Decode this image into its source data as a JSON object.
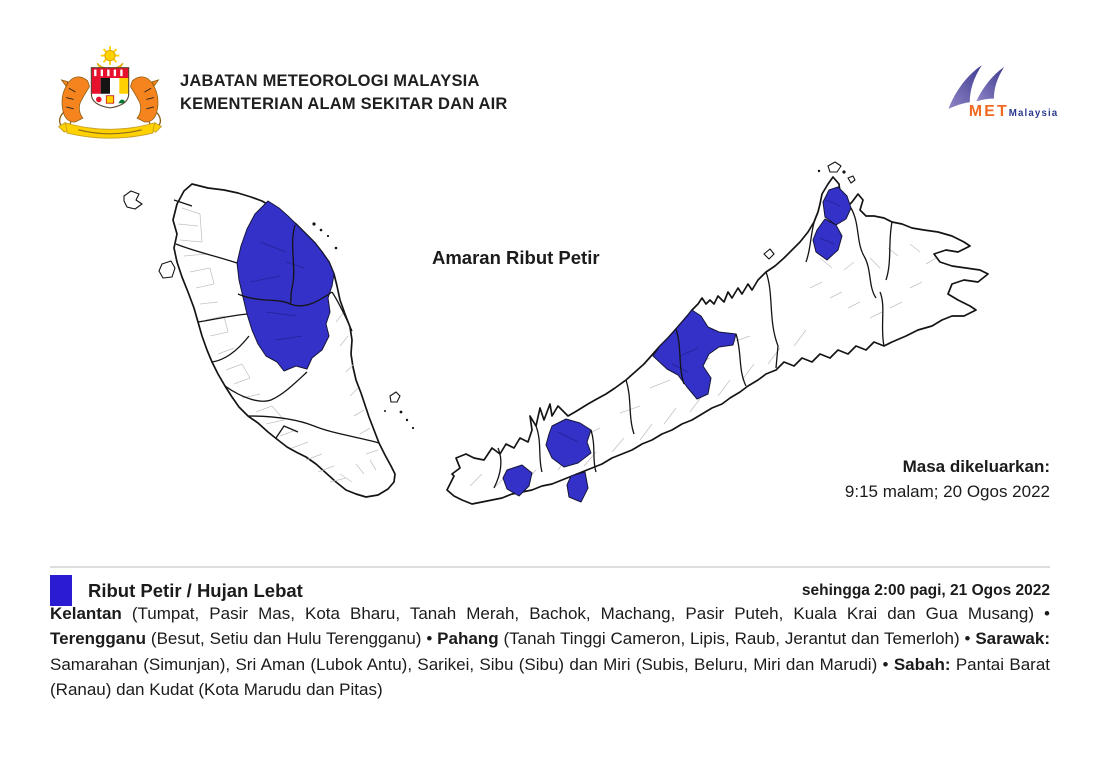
{
  "header": {
    "agency_line1": "JABATAN METEOROLOGI MALAYSIA",
    "agency_line2": "KEMENTERIAN ALAM SEKITAR DAN AIR",
    "crest_icon": "malaysia-coat-of-arms-icon",
    "met_logo_icon": "met-swoosh-icon",
    "met_logo_met": "MET",
    "met_logo_malaysia": "Malaysia"
  },
  "map_area": {
    "title": "Amaran Ribut Petir",
    "issued_label": "Masa dikeluarkan:",
    "issued_value": "9:15 malam; 20 Ogos 2022",
    "maps": [
      {
        "name": "Semenanjung Malaysia",
        "highlighted": [
          "Kelantan",
          "Terengganu (Besut, Setiu, Hulu Terengganu)",
          "Pahang utara (Tanah Tinggi Cameron, Lipis, Raub, Jerantut, Temerloh)"
        ]
      },
      {
        "name": "Sarawak dan Sabah",
        "highlighted": [
          "Samarahan (Simunjan)",
          "Sri Aman (Lubok Antu)",
          "Sarikei",
          "Sibu (Sibu)",
          "Miri (Subis, Beluru, Miri, Marudi)",
          "Pantai Barat (Ranau)",
          "Kudat (Kota Marudu, Pitas)"
        ]
      }
    ]
  },
  "legend": {
    "label": "Ribut Petir / Hujan Lebat",
    "valid_until": "sehingga 2:00 pagi, 21 Ogos 2022"
  },
  "warning_text": {
    "segments": [
      {
        "text": "Kelantan",
        "bold": true
      },
      {
        "text": " (Tumpat, Pasir Mas, Kota Bharu, Tanah Merah, Bachok, Machang, Pasir Puteh, Kuala Krai dan Gua Musang) • ",
        "bold": false
      },
      {
        "text": "Terengganu",
        "bold": true
      },
      {
        "text": " (Besut, Setiu dan Hulu Terengganu) • ",
        "bold": false
      },
      {
        "text": "Pahang",
        "bold": true
      },
      {
        "text": " (Tanah Tinggi Cameron, Lipis, Raub, Jerantut dan Temerloh) • ",
        "bold": false
      },
      {
        "text": "Sarawak:",
        "bold": true
      },
      {
        "text": " Samarahan (Simunjan), Sri Aman (Lubok Antu), Sarikei, Sibu (Sibu) dan Miri (Subis, Beluru, Miri dan Marudi) • ",
        "bold": false
      },
      {
        "text": "Sabah:",
        "bold": true
      },
      {
        "text": " Pantai Barat (Ranau) dan Kudat (Kota Marudu dan Pitas)",
        "bold": false
      }
    ]
  },
  "colors": {
    "warning_blue": "#2B1CD3",
    "map_highlight_blue": "#3431C8",
    "coast_outline": "#141414",
    "district_line": "#c2c2c2",
    "divider": "#dedede",
    "met_orange": "#F26A21",
    "met_navy": "#2B3A8F",
    "met_purple": "#4D4498",
    "crest_yellow": "#FFD100",
    "crest_red": "#E8112D",
    "tiger_orange": "#F5841F"
  }
}
